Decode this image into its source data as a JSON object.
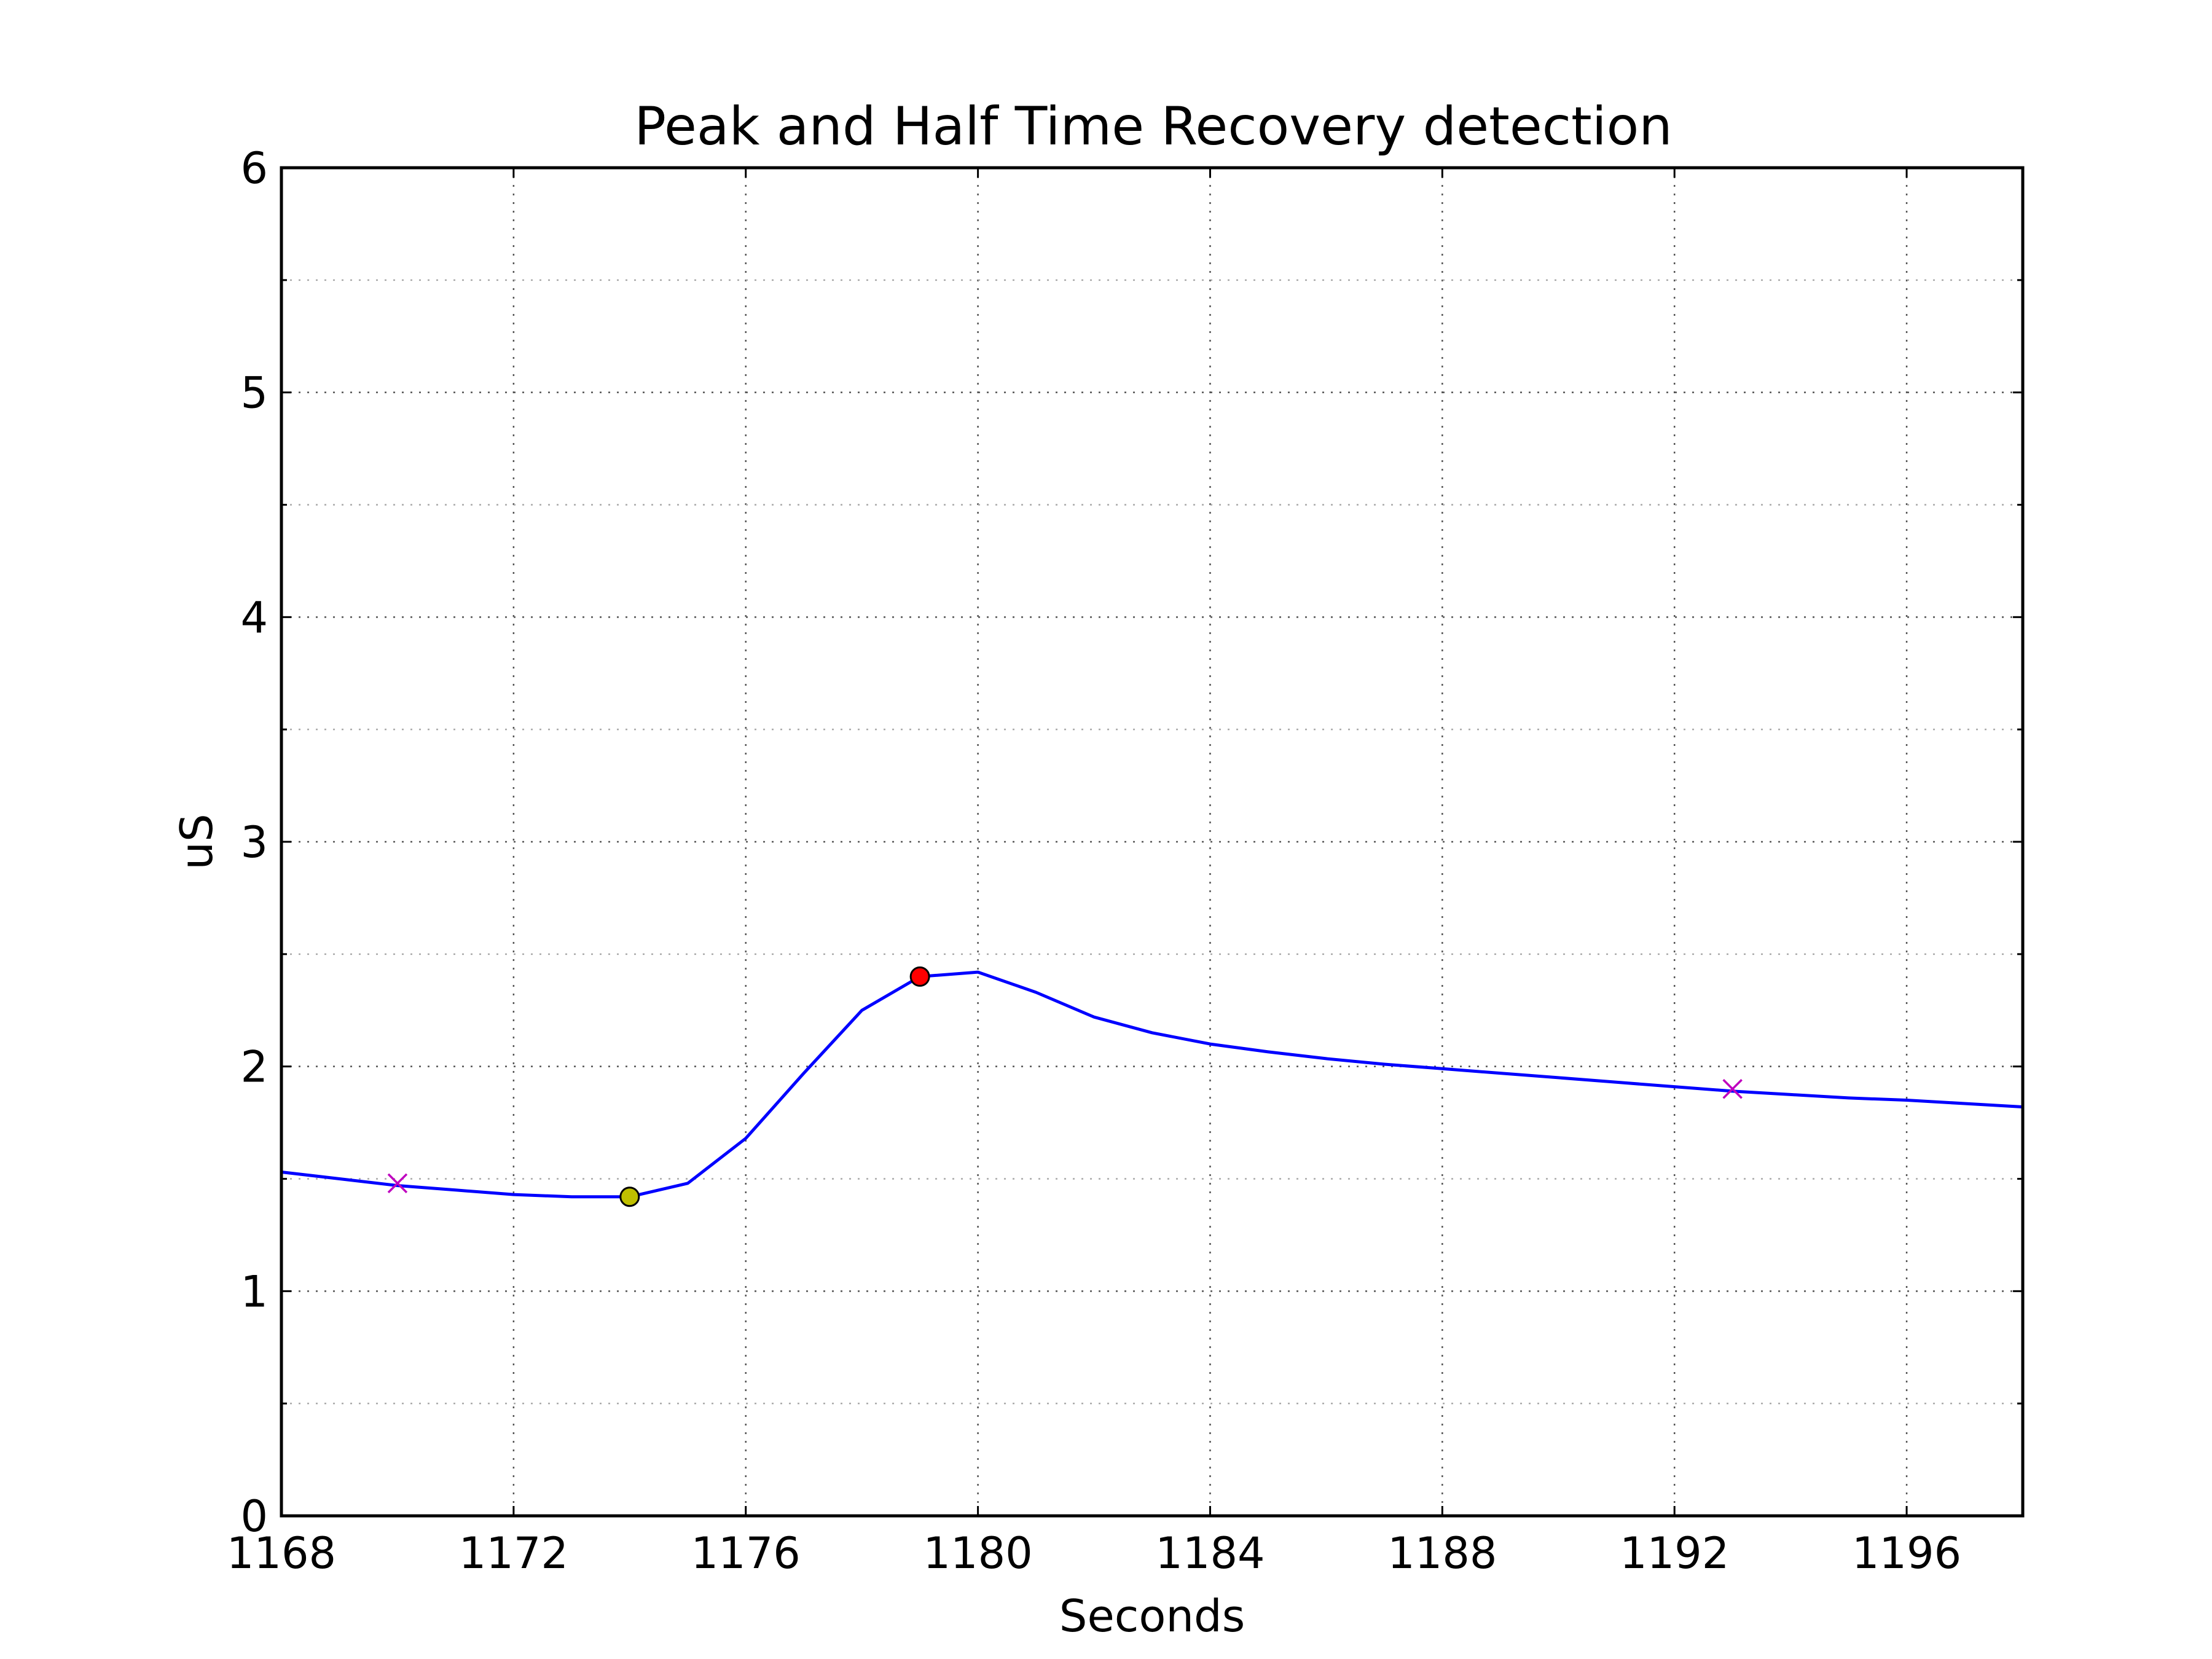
{
  "chart_data": {
    "type": "line",
    "title": "Peak and Half Time Recovery detection",
    "xlabel": "Seconds",
    "ylabel": "uS",
    "xlim": [
      1168,
      1198
    ],
    "ylim": [
      0,
      6
    ],
    "x_ticks": [
      1168,
      1172,
      1176,
      1180,
      1184,
      1188,
      1192,
      1196
    ],
    "y_ticks": [
      0,
      1,
      2,
      3,
      4,
      5,
      6
    ],
    "y_minor_step": 0.5,
    "grid": true,
    "line_color": "#0000ff",
    "series": [
      {
        "x": [
          1168,
          1169,
          1170,
          1171,
          1172,
          1173,
          1174,
          1175,
          1176,
          1177,
          1178,
          1179,
          1180,
          1181,
          1182,
          1183,
          1184,
          1185,
          1186,
          1187,
          1188,
          1189,
          1190,
          1191,
          1192,
          1193,
          1194,
          1195,
          1196,
          1197,
          1198
        ],
        "y": [
          1.53,
          1.5,
          1.47,
          1.45,
          1.43,
          1.42,
          1.42,
          1.48,
          1.68,
          1.97,
          2.25,
          2.4,
          2.42,
          2.33,
          2.22,
          2.15,
          2.1,
          2.065,
          2.035,
          2.01,
          1.99,
          1.97,
          1.95,
          1.93,
          1.91,
          1.89,
          1.875,
          1.86,
          1.85,
          1.835,
          1.82
        ]
      }
    ],
    "markers": [
      {
        "kind": "x",
        "x": 1170,
        "y": 1.48,
        "color": "#bf00bf"
      },
      {
        "kind": "x",
        "x": 1193,
        "y": 1.9,
        "color": "#bf00bf"
      },
      {
        "kind": "circle",
        "x": 1174,
        "y": 1.42,
        "color": "#bfbf00"
      },
      {
        "kind": "circle",
        "x": 1179,
        "y": 2.4,
        "color": "#ff0000"
      }
    ]
  }
}
